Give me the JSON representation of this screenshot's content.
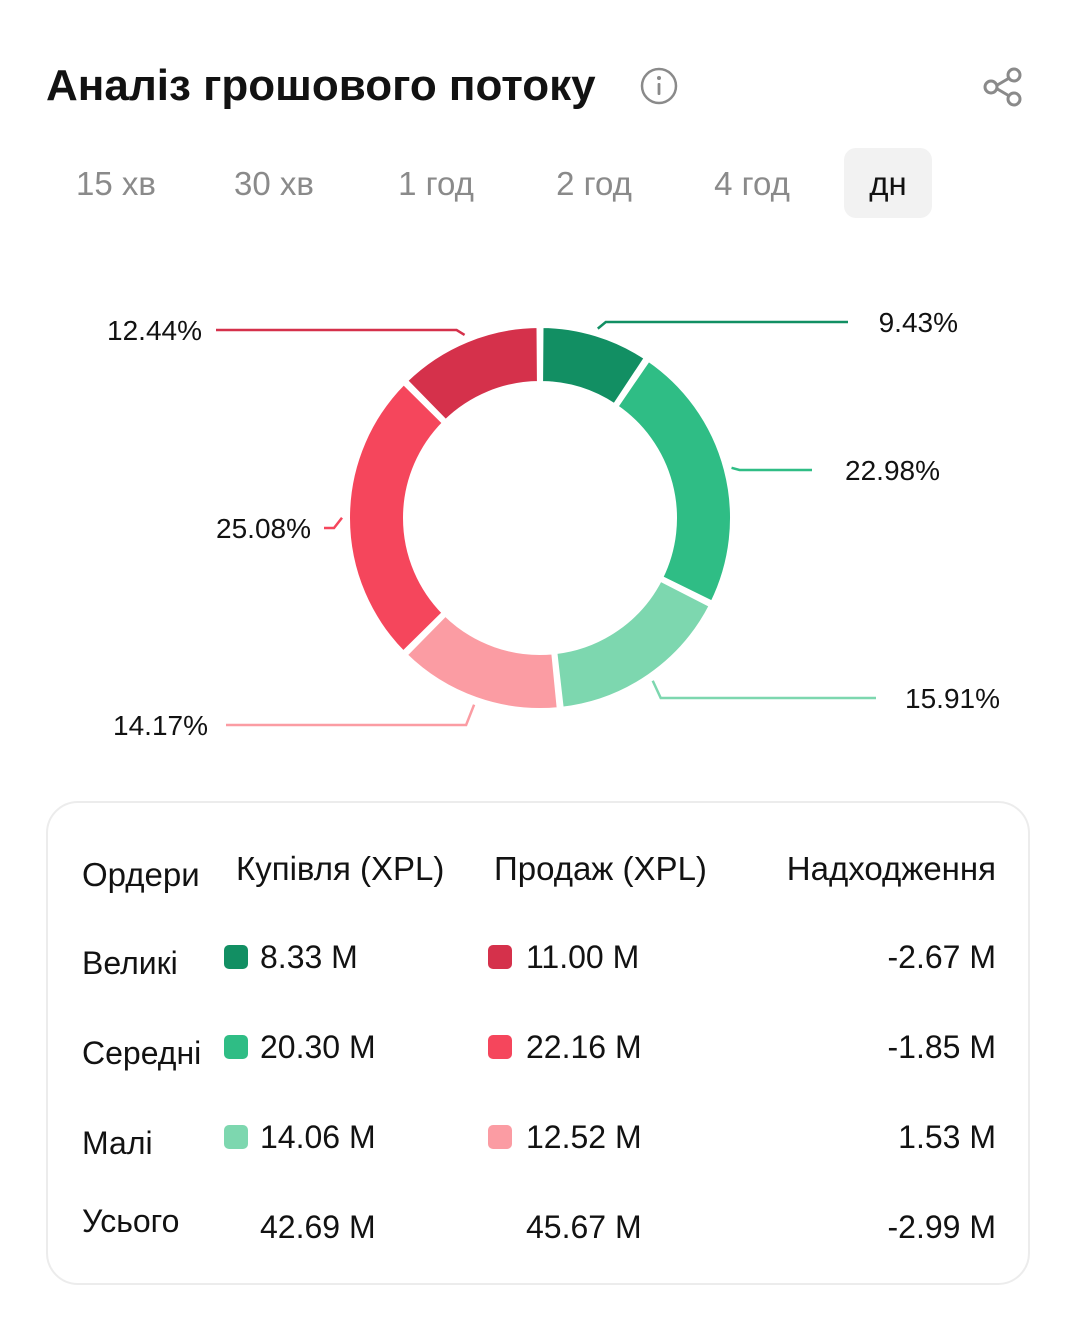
{
  "header": {
    "title": "Аналіз грошового потоку",
    "info_icon": "info-icon",
    "share_icon": "share-icon"
  },
  "tabs": [
    {
      "label": "15 хв",
      "active": false
    },
    {
      "label": "30 хв",
      "active": false
    },
    {
      "label": "1 год",
      "active": false
    },
    {
      "label": "2 год",
      "active": false
    },
    {
      "label": "4 год",
      "active": false
    },
    {
      "label": "дн",
      "active": true
    }
  ],
  "chart_data": {
    "type": "pie",
    "donut": true,
    "slices": [
      {
        "label": "9.43%",
        "value": 9.43,
        "color": "#128f63"
      },
      {
        "label": "22.98%",
        "value": 22.98,
        "color": "#2fbd85"
      },
      {
        "label": "15.91%",
        "value": 15.91,
        "color": "#7dd7af"
      },
      {
        "label": "14.17%",
        "value": 14.17,
        "color": "#fb9ca3"
      },
      {
        "label": "25.08%",
        "value": 25.08,
        "color": "#f5465c"
      },
      {
        "label": "12.44%",
        "value": 12.44,
        "color": "#d5314b"
      }
    ]
  },
  "table": {
    "headers": {
      "orders": "Ордери",
      "buy": "Купівля (XPL)",
      "sell": "Продаж (XPL)",
      "inflow": "Надходження"
    },
    "rows": [
      {
        "label": "Великі",
        "buy": "8.33 M",
        "sell": "11.00 M",
        "inflow": "-2.67 M",
        "buy_color": "#128f63",
        "sell_color": "#d5314b"
      },
      {
        "label": "Середні",
        "buy": "20.30 M",
        "sell": "22.16 M",
        "inflow": "-1.85 M",
        "buy_color": "#2fbd85",
        "sell_color": "#f5465c"
      },
      {
        "label": "Малі",
        "buy": "14.06 M",
        "sell": "12.52 M",
        "inflow": "1.53 M",
        "buy_color": "#7dd7af",
        "sell_color": "#fb9ca3"
      },
      {
        "label": "Усього",
        "buy": "42.69 M",
        "sell": "45.67 M",
        "inflow": "-2.99 M"
      }
    ]
  }
}
